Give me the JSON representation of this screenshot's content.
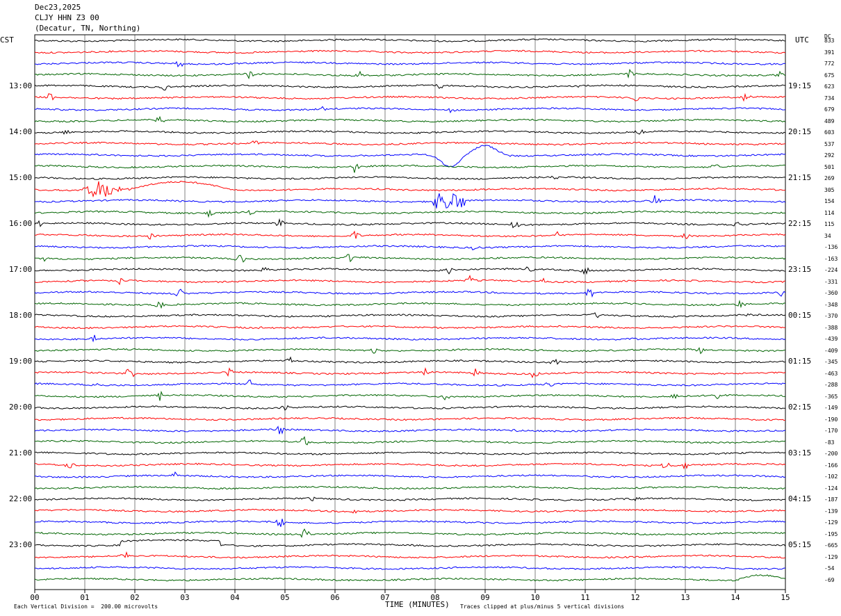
{
  "header": {
    "date": "Dec23,2025",
    "station": "CLJY HHN Z3 00",
    "location": "(Decatur, TN, Northing)"
  },
  "left_axis_label": "CST",
  "right_axis_label": "UTC",
  "dc_label": "DC",
  "footer": {
    "scale_text": "Each Vertical Division =  200.00 microvolts",
    "xlabel": "TIME (MINUTES)",
    "clip_text": "Traces clipped at plus/minus 5 vertical divisions"
  },
  "chart_data": {
    "type": "line",
    "title": "Dec23,2025 CLJY HHN Z3 00 (Decatur, TN, Northing)",
    "xlabel": "TIME (MINUTES)",
    "xlim": [
      0,
      15
    ],
    "x_ticks": [
      "00",
      "01",
      "02",
      "03",
      "04",
      "05",
      "06",
      "07",
      "08",
      "09",
      "10",
      "11",
      "12",
      "13",
      "14",
      "15"
    ],
    "trace_count": 48,
    "trace_interval_minutes": 15,
    "trace_colors": [
      "#000000",
      "#ff0000",
      "#0000ff",
      "#006400"
    ],
    "left_time_labels": [
      "13:00",
      "14:00",
      "15:00",
      "16:00",
      "17:00",
      "18:00",
      "19:00",
      "20:00",
      "21:00",
      "22:00",
      "23:00"
    ],
    "right_time_labels": [
      "19:15",
      "20:15",
      "21:15",
      "22:15",
      "23:15",
      "00:15",
      "01:15",
      "02:15",
      "03:15",
      "04:15",
      "05:15"
    ],
    "dc_offsets": [
      833,
      391,
      772,
      675,
      623,
      734,
      679,
      489,
      603,
      537,
      292,
      501,
      269,
      305,
      154,
      114,
      115,
      34,
      -136,
      -163,
      -224,
      -331,
      -360,
      -348,
      -370,
      -388,
      -439,
      -409,
      -345,
      -463,
      -288,
      -365,
      -149,
      -190,
      -170,
      -83,
      -200,
      -166,
      -102,
      -124,
      -187,
      -139,
      -129,
      -195,
      -665,
      -129,
      -54,
      -69
    ],
    "grid": true
  }
}
